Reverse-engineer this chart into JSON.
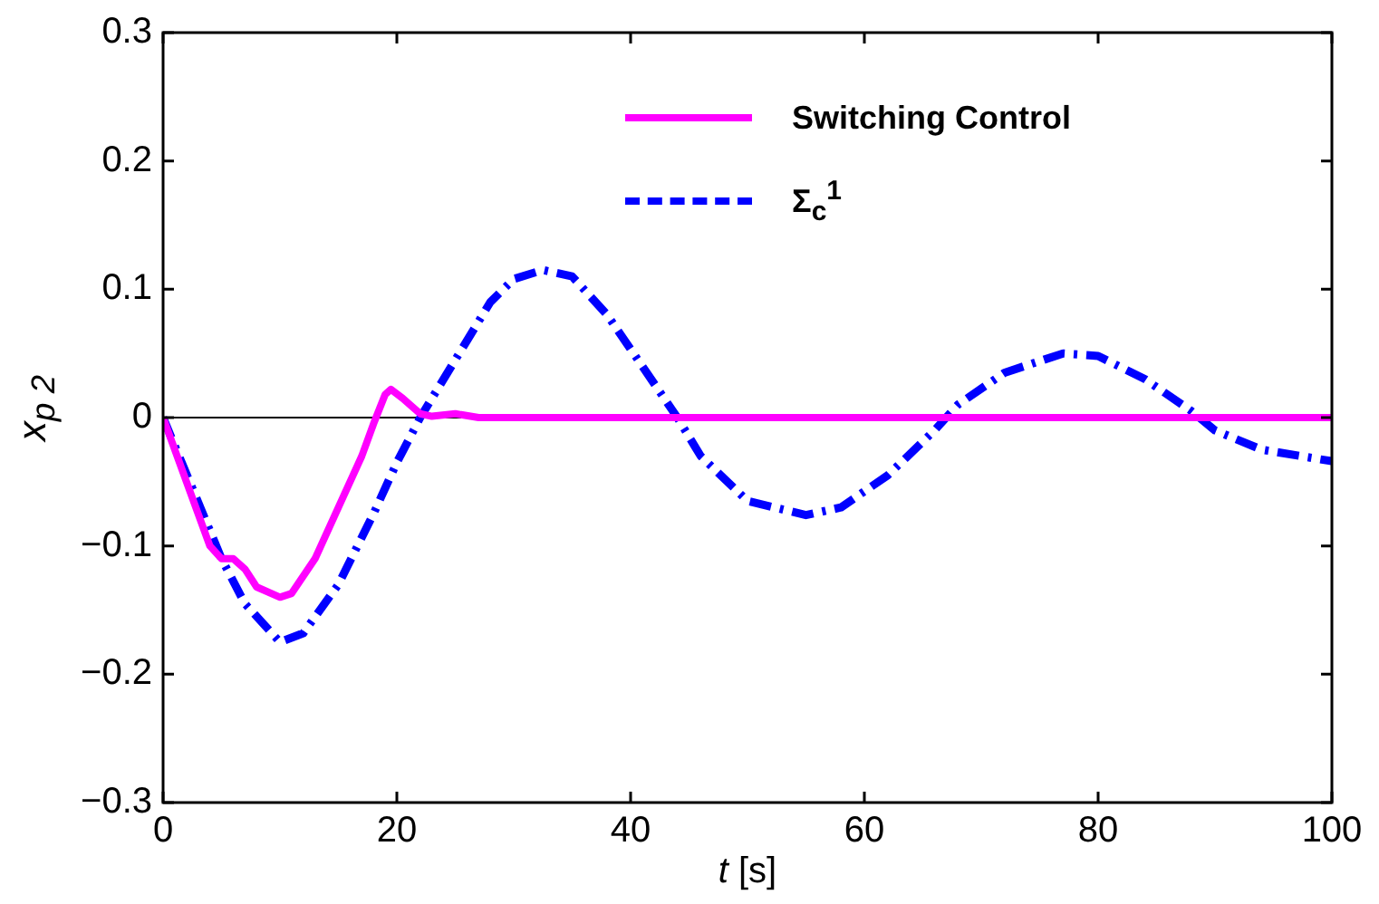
{
  "chart_data": {
    "type": "line",
    "xlabel": "t [s]",
    "ylabel": "x$_{p 2}$",
    "xlim": [
      0,
      100
    ],
    "xticks": [
      0,
      20,
      40,
      60,
      80,
      100
    ],
    "ylim": [
      -0.3,
      0.3
    ],
    "yticks": [
      {
        "value": -0.3,
        "label": "−0.3"
      },
      {
        "value": -0.2,
        "label": "−0.2"
      },
      {
        "value": -0.1,
        "label": "−0.1"
      },
      0,
      0.1,
      0.2,
      0.3
    ],
    "grid": false,
    "legend": "top right",
    "marker": "none",
    "ref_lines": [
      {
        "axis": "y",
        "value": 0,
        "color": "#000000"
      }
    ],
    "series": [
      {
        "name": "Switching Control",
        "color": "#ff00ff",
        "line_style": "solid",
        "x": [
          0,
          2,
          4,
          5,
          6,
          7,
          8,
          10,
          11,
          13,
          15,
          17,
          18,
          19,
          19.5,
          20.5,
          22,
          23,
          25,
          27,
          30,
          100
        ],
        "values": [
          0,
          -0.05,
          -0.1,
          -0.11,
          -0.11,
          -0.118,
          -0.132,
          -0.14,
          -0.137,
          -0.11,
          -0.07,
          -0.03,
          -0.005,
          0.018,
          0.022,
          0.015,
          0.003,
          0.001,
          0.003,
          0,
          0,
          0
        ]
      },
      {
        "name": "Σ$_{c}$$^{1}$",
        "color": "#0000ff",
        "line_style": "dashed",
        "x": [
          0,
          5,
          7,
          10,
          12,
          15,
          18,
          20,
          22,
          25,
          28,
          30,
          32.5,
          35,
          38,
          41,
          44,
          46,
          50,
          55,
          58,
          62,
          66,
          68,
          72,
          77,
          80,
          84,
          88,
          90,
          94,
          100
        ],
        "values": [
          0,
          -0.11,
          -0.145,
          -0.175,
          -0.168,
          -0.13,
          -0.075,
          -0.035,
          0,
          0.045,
          0.09,
          0.108,
          0.115,
          0.11,
          0.08,
          0.04,
          0,
          -0.03,
          -0.065,
          -0.076,
          -0.07,
          -0.045,
          -0.01,
          0.01,
          0.035,
          0.05,
          0.048,
          0.03,
          0.005,
          -0.01,
          -0.025,
          -0.034
        ]
      }
    ]
  }
}
